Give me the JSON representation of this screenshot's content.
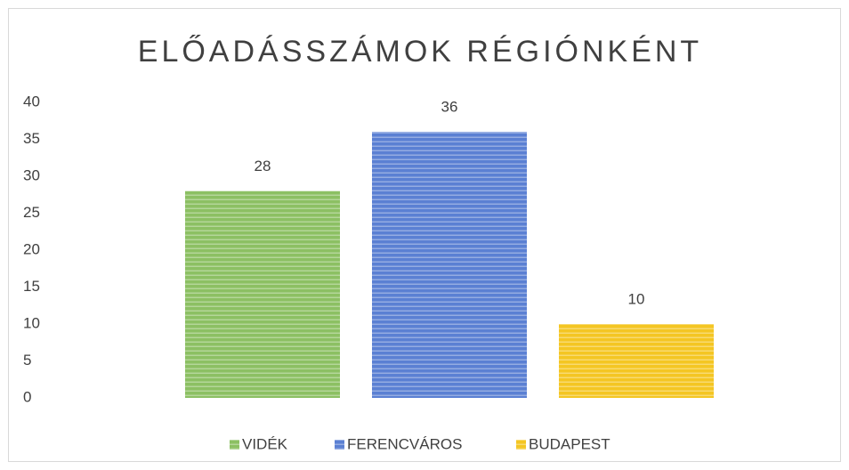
{
  "chart_data": {
    "type": "bar",
    "title": "ELŐADÁSSZÁMOK RÉGIÓNKÉNT",
    "series": [
      {
        "name": "VIDÉK",
        "color": "#8cc063",
        "values": [
          28
        ]
      },
      {
        "name": "FERENCVÁROS",
        "color": "#5b80d3",
        "values": [
          36
        ]
      },
      {
        "name": "BUDAPEST",
        "color": "#f4c623",
        "values": [
          10
        ]
      }
    ],
    "ylim": [
      0,
      40
    ],
    "yticks": [
      0,
      5,
      10,
      15,
      20,
      25,
      30,
      35,
      40
    ],
    "grid": false,
    "legend": "bottom"
  }
}
